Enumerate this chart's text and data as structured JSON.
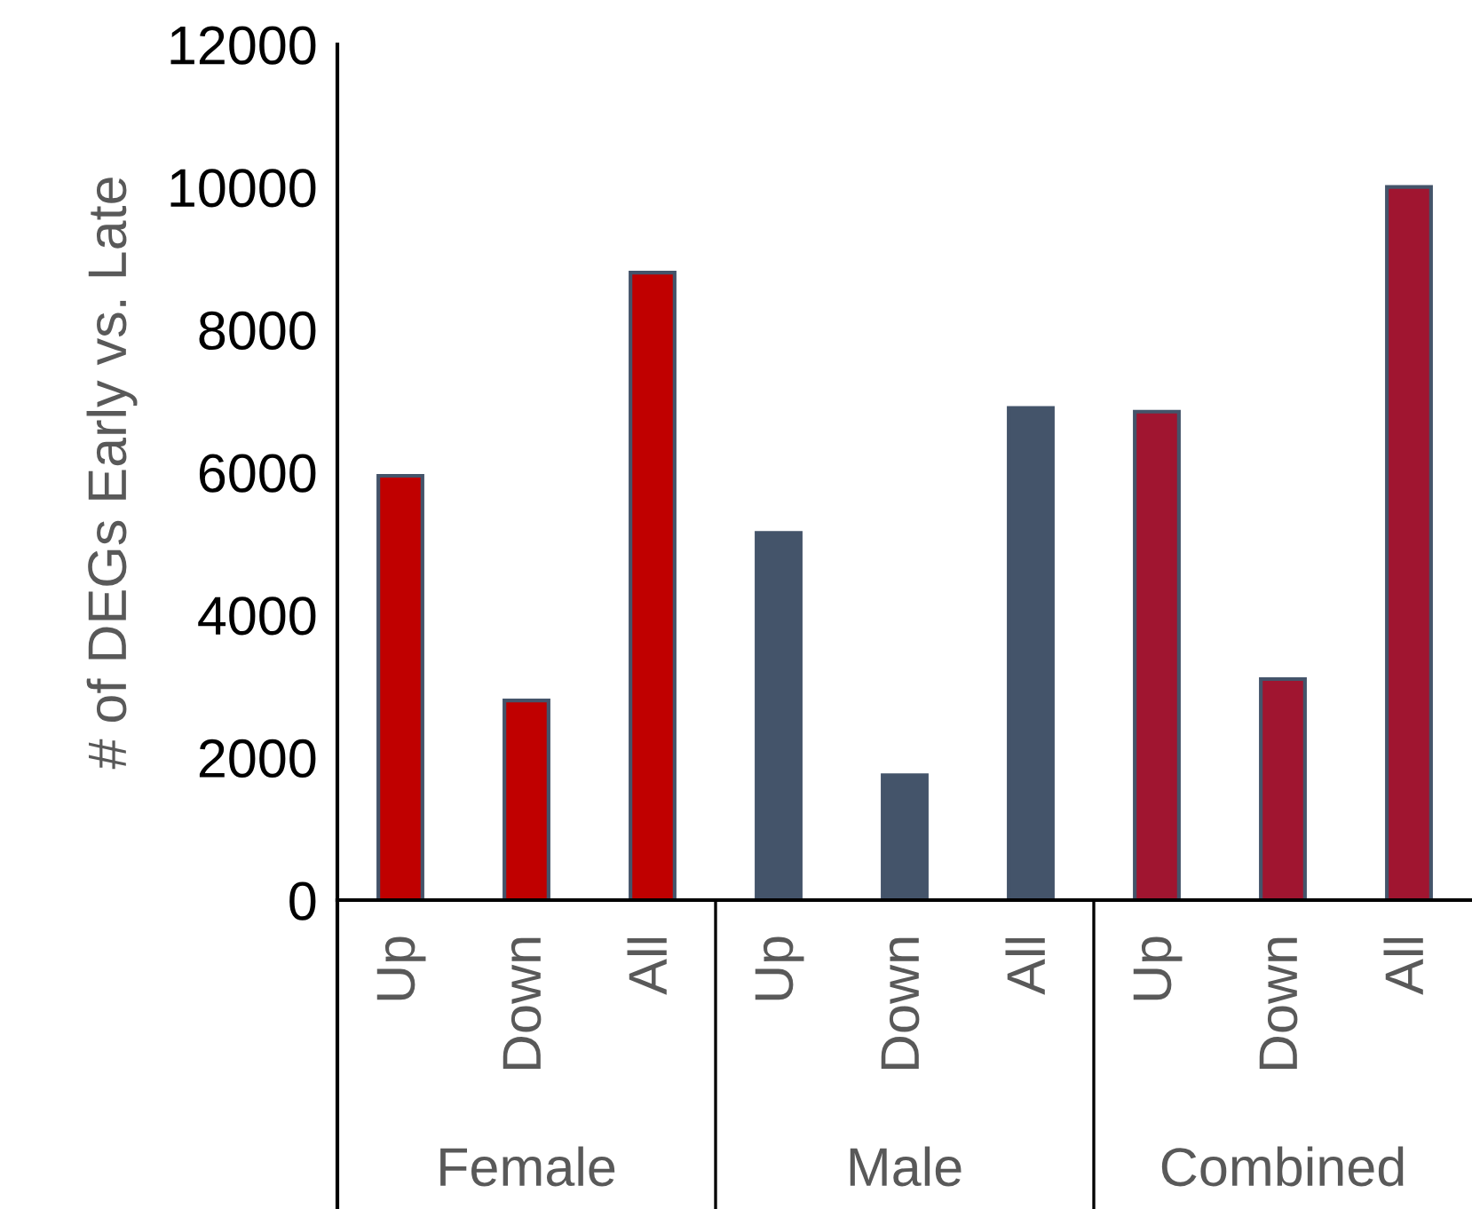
{
  "chart_data": {
    "type": "bar",
    "ylabel": "# of DEGs Early vs. Late",
    "categories": [
      "Up",
      "Down",
      "All",
      "Up",
      "Down",
      "All",
      "Up",
      "Down",
      "All"
    ],
    "values": [
      5950,
      2800,
      8800,
      5150,
      1750,
      6900,
      6850,
      3100,
      10000
    ],
    "colors": [
      "#c00000",
      "#c00000",
      "#c00000",
      "#44546a",
      "#44546a",
      "#44546a",
      "#a01530",
      "#a01530",
      "#a01530"
    ],
    "annotations": [
      "Female",
      "Male",
      "Combined"
    ],
    "ylim": [
      0,
      12000
    ],
    "yticks": [
      0,
      2000,
      4000,
      6000,
      8000,
      10000,
      12000
    ],
    "grid": false,
    "legend": false
  }
}
